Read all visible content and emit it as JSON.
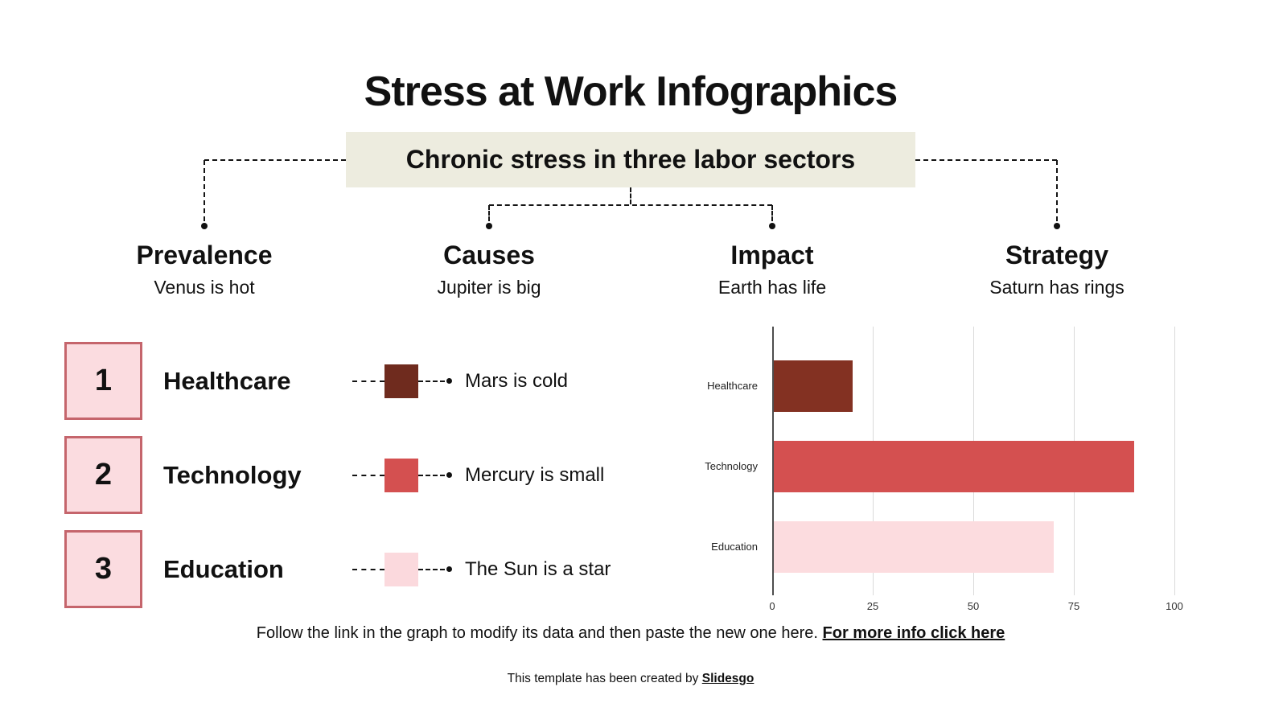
{
  "slide": {
    "title": "Stress at Work Infographics",
    "subtitle": "Chronic stress in three labor sectors"
  },
  "columns": [
    {
      "heading": "Prevalence",
      "caption": "Venus is hot"
    },
    {
      "heading": "Causes",
      "caption": "Jupiter is big"
    },
    {
      "heading": "Impact",
      "caption": "Earth has life"
    },
    {
      "heading": "Strategy",
      "caption": "Saturn has rings"
    }
  ],
  "list_items": [
    {
      "number": "1",
      "label": "Healthcare",
      "note": "Mars is cold",
      "swatch_color": "#6f2b1e"
    },
    {
      "number": "2",
      "label": "Technology",
      "note": "Mercury is small",
      "swatch_color": "#d45050"
    },
    {
      "number": "3",
      "label": "Education",
      "note": "The Sun is a star",
      "swatch_color": "#fbd9dd"
    }
  ],
  "chart_data": {
    "type": "bar",
    "orientation": "horizontal",
    "categories": [
      "Healthcare",
      "Technology",
      "Education"
    ],
    "values": [
      20,
      90,
      70
    ],
    "bar_colors": [
      "#833122",
      "#d45050",
      "#fcdcdf"
    ],
    "xlim": [
      0,
      100
    ],
    "xticks": [
      0,
      25,
      50,
      75,
      100
    ],
    "grid": true,
    "legend": "none",
    "title": "",
    "xlabel": "",
    "ylabel": ""
  },
  "footer": {
    "text": "Follow the link in the graph to modify its data and then paste the new one here. ",
    "link_label": "For more info click here"
  },
  "credit": {
    "text": "This template has been created by ",
    "link_label": "Slidesgo"
  },
  "colors": {
    "background": "#ffffff",
    "text": "#111111",
    "subtitle_bg": "#edecdf",
    "number_box_bg": "#fbdce0",
    "number_box_border": "#c5656c",
    "connector": "#141414",
    "axis_line": "#4d4d4d",
    "gridline": "#dadada",
    "tick_text": "#333333"
  }
}
